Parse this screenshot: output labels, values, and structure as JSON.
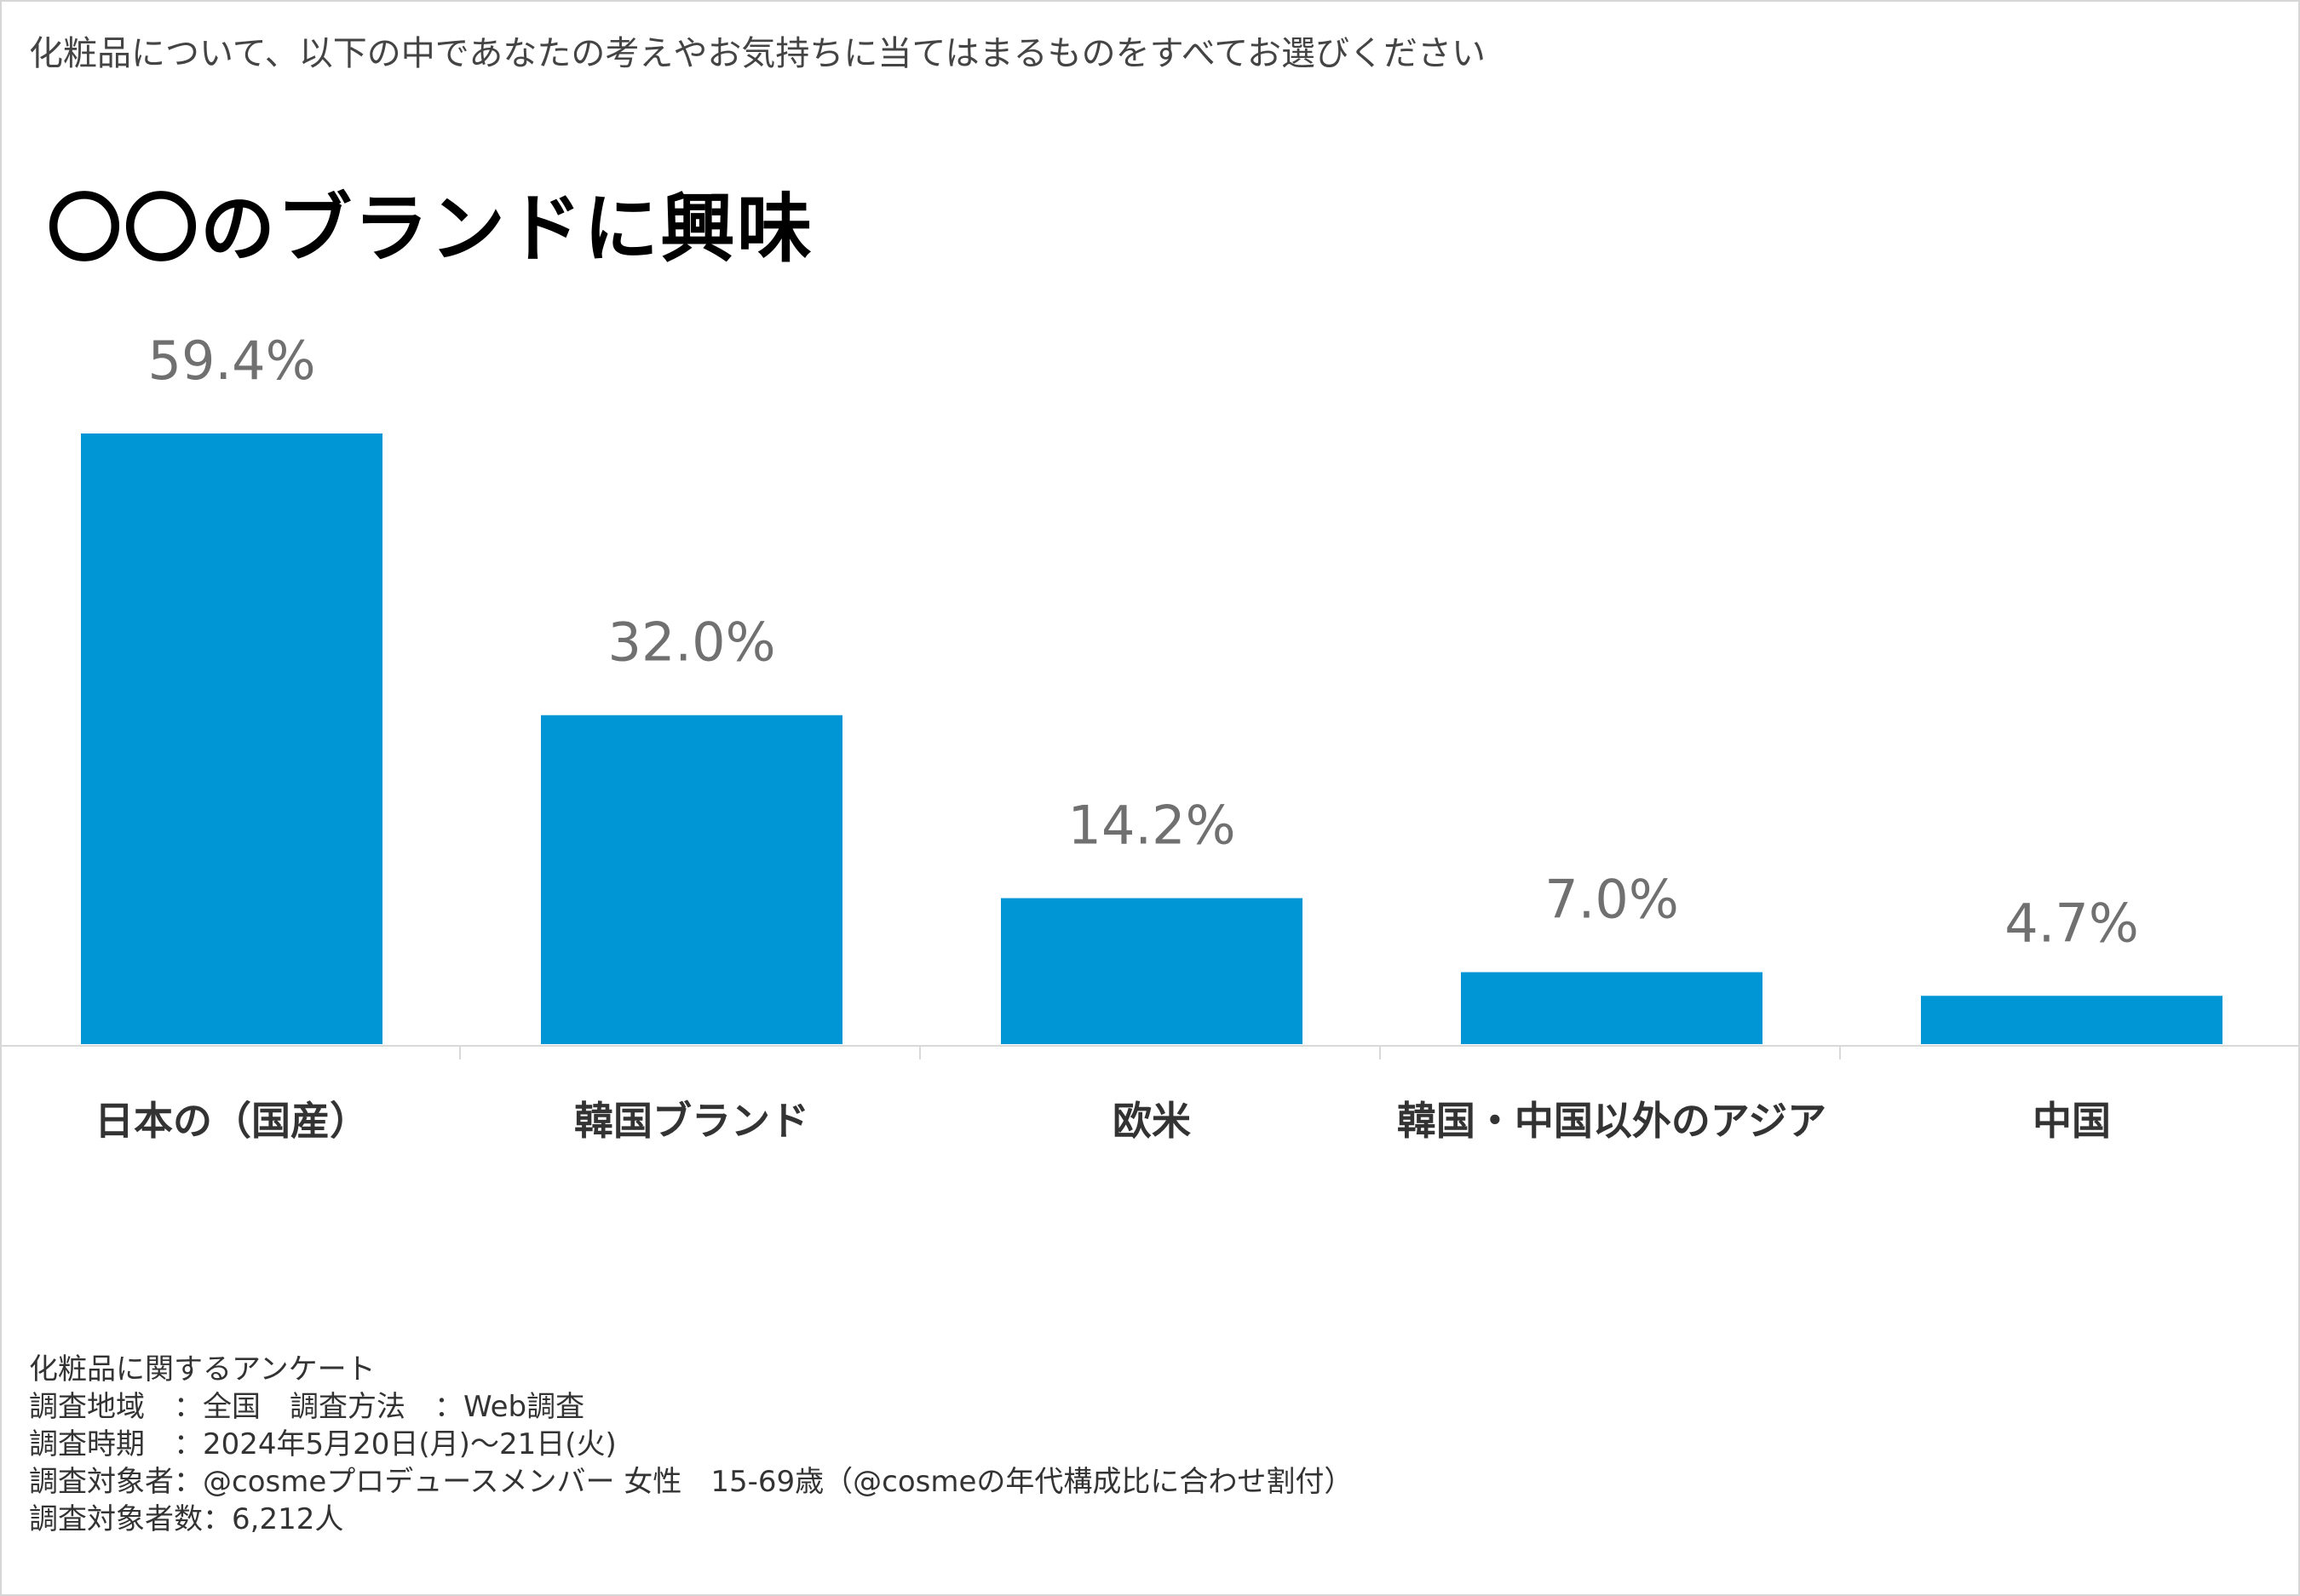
{
  "question": "化粧品について、以下の中であなたの考えやお気持ちに当てはまるものをすべてお選びください",
  "colors": {
    "bar": "#0096D6",
    "value_label": "#707070",
    "category_label": "#333333",
    "axis": "#d9d9d9"
  },
  "chart_data": {
    "type": "bar",
    "title": "〇〇のブランドに興味",
    "categories": [
      "日本の（国産）",
      "韓国ブランド",
      "欧米",
      "韓国・中国以外のアジア",
      "中国"
    ],
    "values": [
      59.4,
      32.0,
      14.2,
      7.0,
      4.7
    ],
    "value_labels": [
      "59.4%",
      "32.0%",
      "14.2%",
      "7.0%",
      "4.7%"
    ],
    "xlabel": "",
    "ylabel": "",
    "ylim": [
      0,
      59.4
    ],
    "unit": "%",
    "grid": false,
    "legend": "none"
  },
  "notes": {
    "survey_name": "化粧品に関するアンケート",
    "area_and_method": "調査地域　：全国　調査方法　：Web調査",
    "period": "調査時期　：2024年5月20日(月)～21日(火)",
    "target": "調査対象者：@cosmeプロデュースメンバー 女性　15-69歳（@cosmeの年代構成比に合わせ割付）",
    "count": "調査対象者数：6,212人"
  }
}
